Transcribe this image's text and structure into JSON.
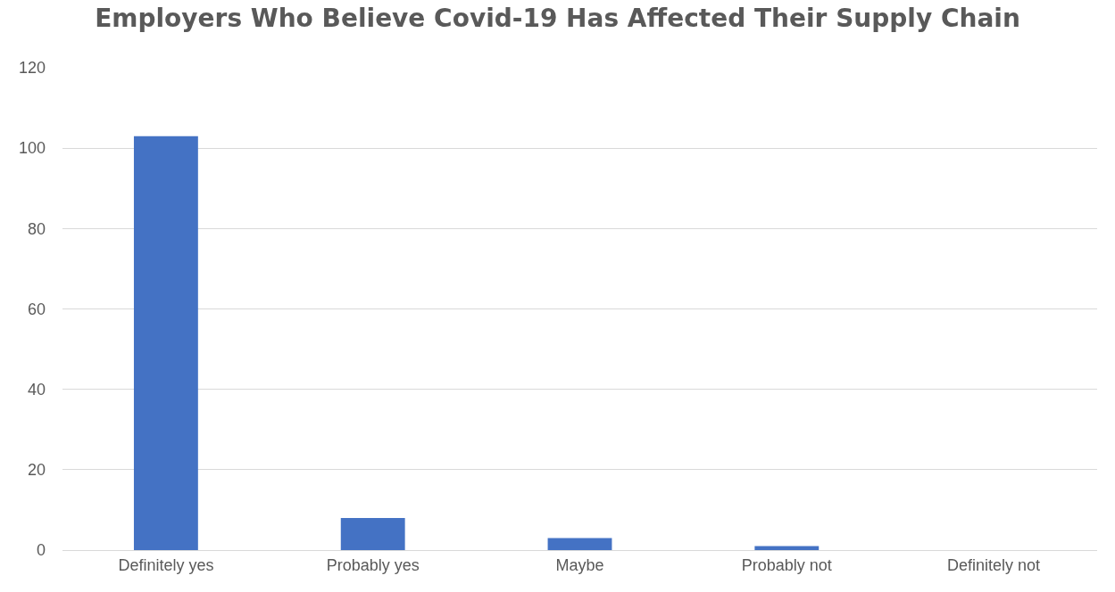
{
  "chart_data": {
    "type": "bar",
    "title": "Employers Who Believe Covid-19 Has Affected Their Supply Chain",
    "categories": [
      "Definitely yes",
      "Probably yes",
      "Maybe",
      "Probably not",
      "Definitely not"
    ],
    "values": [
      103,
      8,
      3,
      1,
      0
    ],
    "color": "#4472c4",
    "ylim": [
      0,
      120
    ],
    "yticks": [
      0,
      20,
      40,
      60,
      80,
      100,
      120
    ],
    "grid": "y"
  }
}
